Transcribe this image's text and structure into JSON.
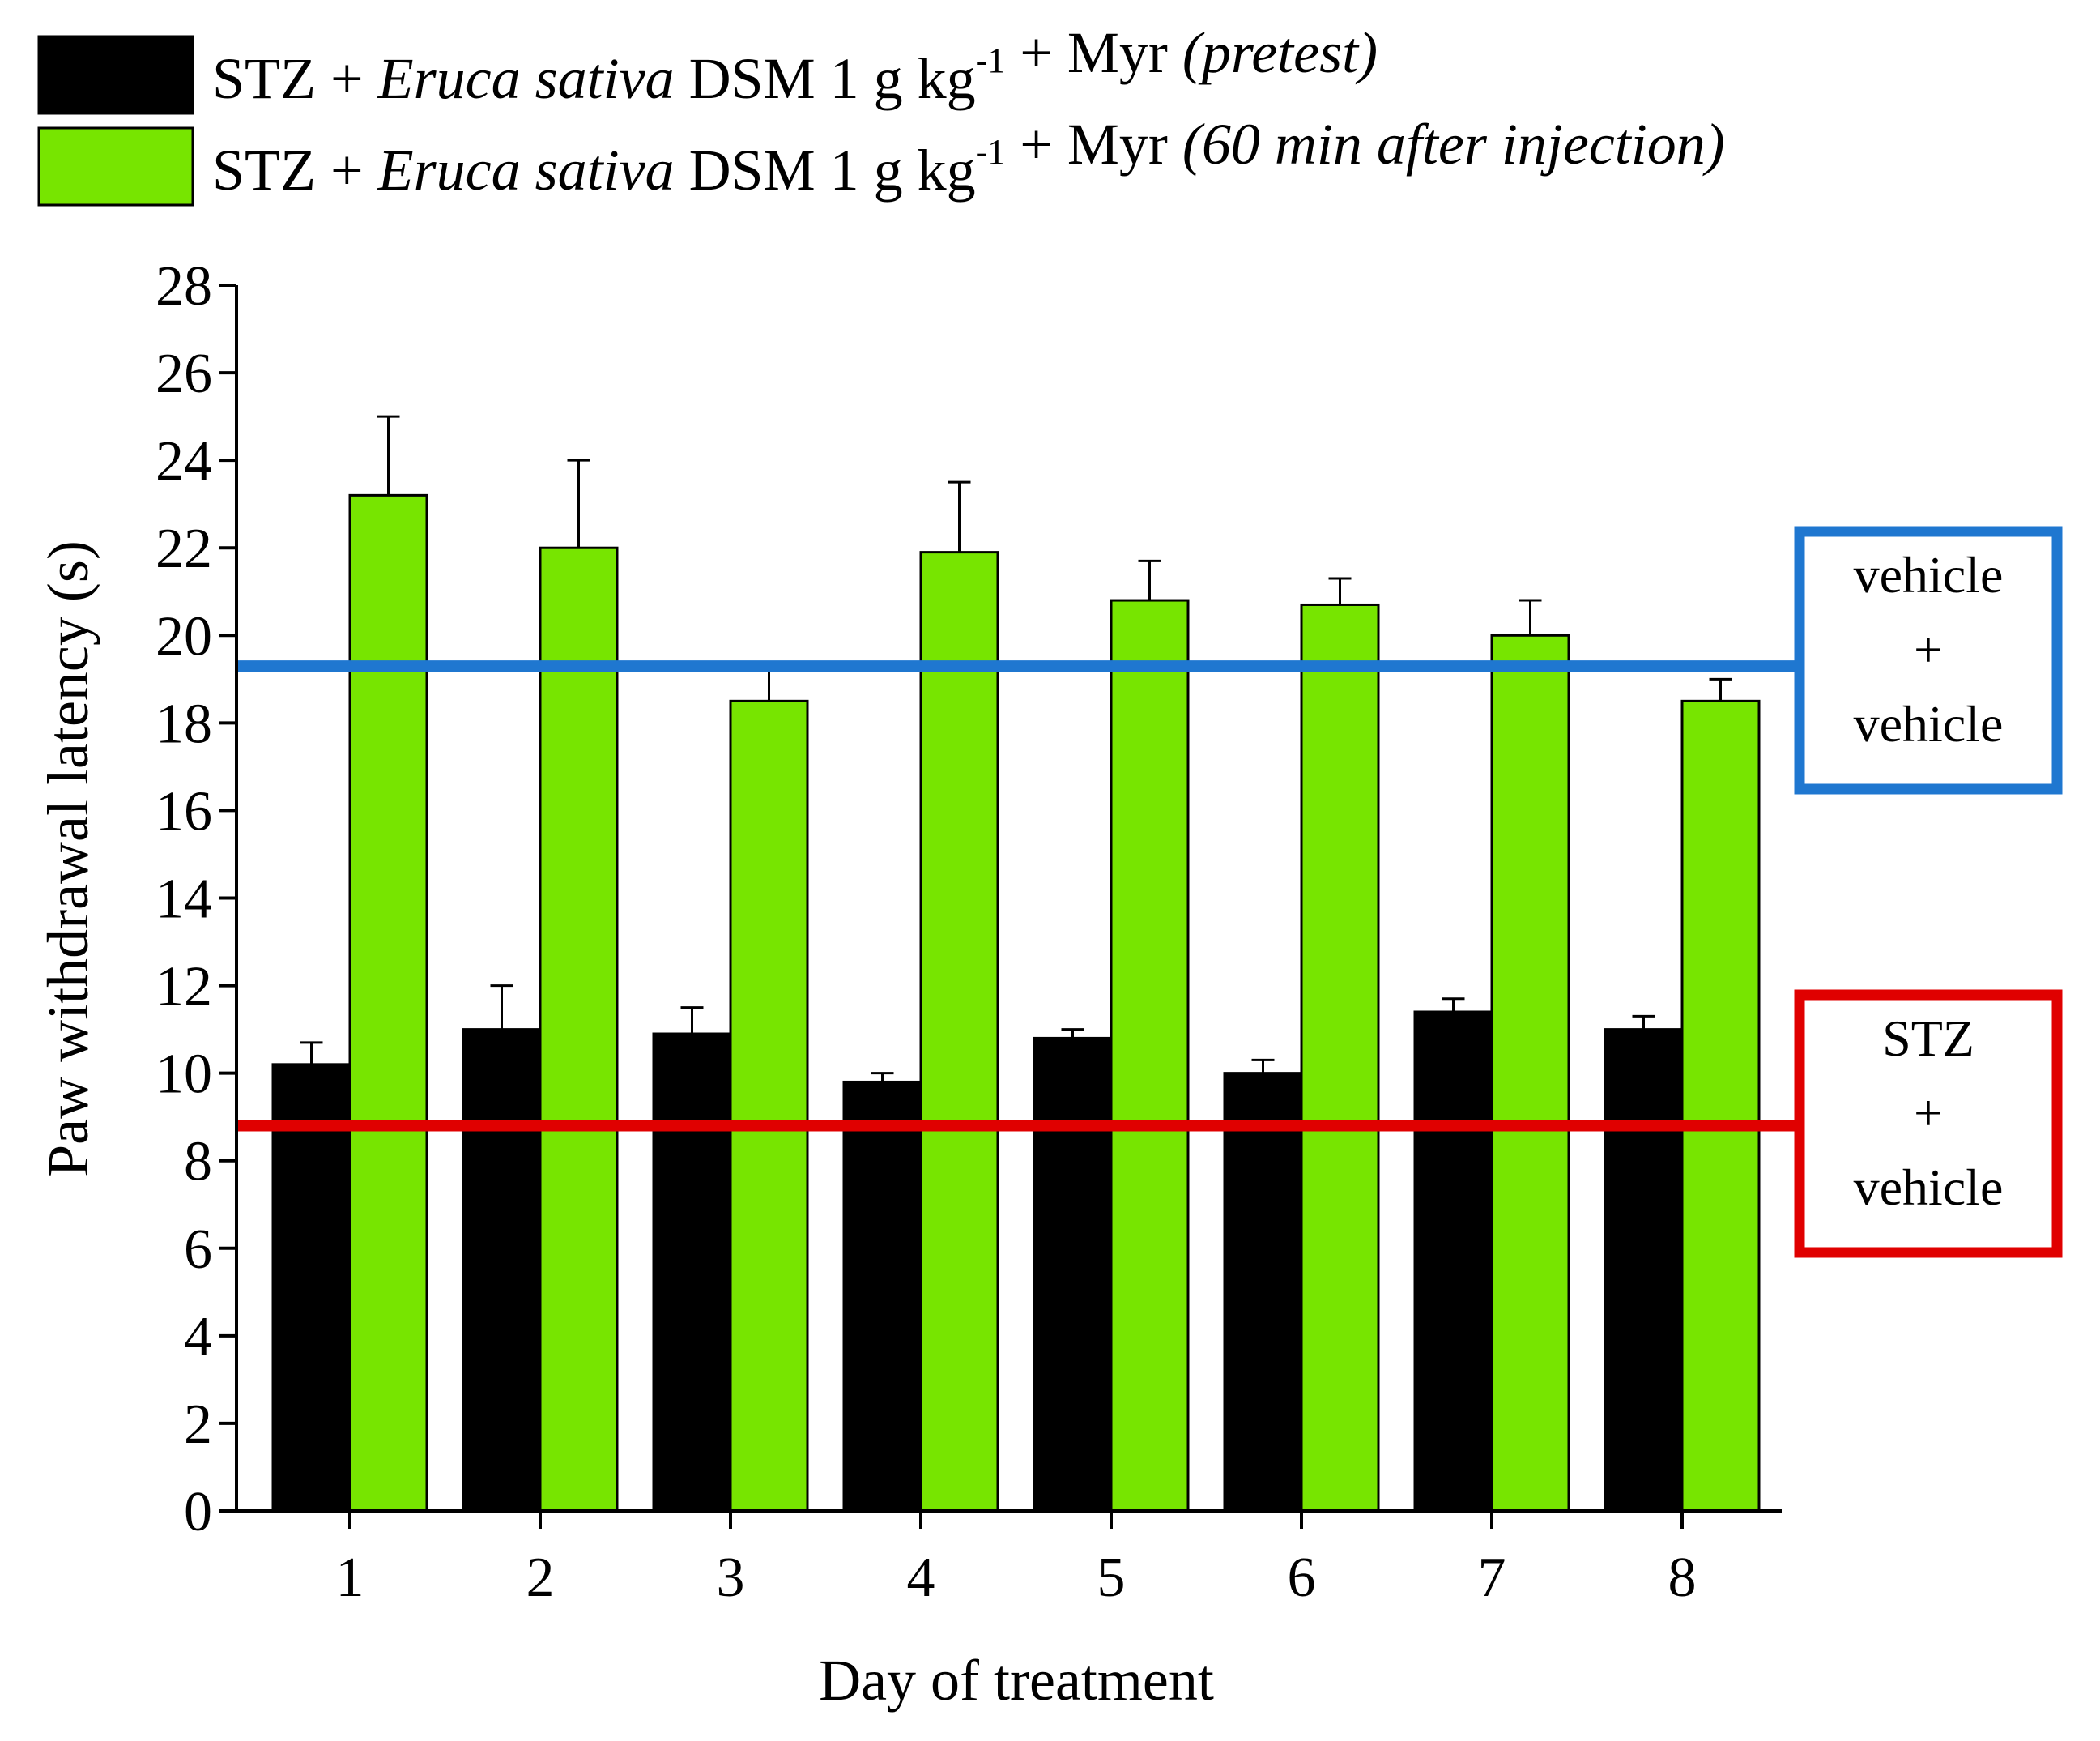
{
  "chart_data": {
    "type": "bar",
    "title": "",
    "xlabel": "Day of treatment",
    "ylabel": "Paw withdrawal latency (s)",
    "ylim": [
      0,
      28
    ],
    "yticks": [
      0,
      2,
      4,
      6,
      8,
      10,
      12,
      14,
      16,
      18,
      20,
      22,
      24,
      26,
      28
    ],
    "categories": [
      "1",
      "2",
      "3",
      "4",
      "5",
      "6",
      "7",
      "8"
    ],
    "grid": false,
    "legend_position": "top",
    "series": [
      {
        "legend": {
          "parts": [
            {
              "text": "STZ + ",
              "style": "normal"
            },
            {
              "text": "Eruca sativa",
              "style": "italic"
            },
            {
              "text": " DSM 1 g kg",
              "style": "normal"
            },
            {
              "text": "-1",
              "style": "superscript"
            },
            {
              "text": " + Myr ",
              "style": "normal"
            },
            {
              "text": "(pretest)",
              "style": "italic"
            }
          ]
        },
        "color": "#000000",
        "values": [
          10.2,
          11.0,
          10.9,
          9.8,
          10.8,
          10.0,
          11.4,
          11.0
        ],
        "error_top": [
          10.7,
          12.0,
          11.5,
          10.0,
          11.0,
          10.3,
          11.7,
          11.3
        ]
      },
      {
        "legend": {
          "parts": [
            {
              "text": "STZ + ",
              "style": "normal"
            },
            {
              "text": "Eruca sativa",
              "style": "italic"
            },
            {
              "text": " DSM 1 g kg",
              "style": "normal"
            },
            {
              "text": "-1",
              "style": "superscript"
            },
            {
              "text": " + Myr ",
              "style": "normal"
            },
            {
              "text": "(60 min after injection)",
              "style": "italic"
            }
          ]
        },
        "color": "#77e500",
        "values": [
          23.2,
          22.0,
          18.5,
          21.9,
          20.8,
          20.7,
          20.0,
          18.5
        ],
        "error_top": [
          25.0,
          24.0,
          19.2,
          23.5,
          21.7,
          21.3,
          20.8,
          19.0
        ]
      }
    ],
    "reference_lines": [
      {
        "value": 19.3,
        "color": "#1f77d0",
        "label_lines": [
          "vehicle",
          "+",
          "vehicle"
        ]
      },
      {
        "value": 8.8,
        "color": "#e00000",
        "label_lines": [
          "STZ",
          "+",
          "vehicle"
        ]
      }
    ]
  }
}
